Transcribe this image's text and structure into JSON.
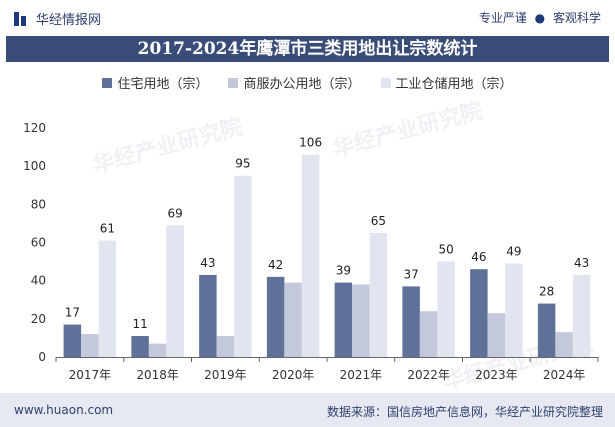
{
  "header": {
    "brand": "华经情报网",
    "slogan_left": "专业严谨",
    "slogan_right": "客观科学"
  },
  "title": "2017-2024年鹰潭市三类用地出让宗数统计",
  "watermark": {
    "cn": "华经产业研究院",
    "url": "www.huaon.com"
  },
  "footer": {
    "url": "www.huaon.com",
    "source": "数据来源：国信房地产信息网，华经产业研究院整理"
  },
  "colors": {
    "residential": "#5f7199",
    "commercial": "#c3c9da",
    "industrial": "#e1e5f0",
    "title_bg": "#3a4d78"
  },
  "chart_data": {
    "type": "bar",
    "categories": [
      "2017年",
      "2018年",
      "2019年",
      "2020年",
      "2021年",
      "2022年",
      "2023年",
      "2024年"
    ],
    "series": [
      {
        "name": "住宅用地（宗）",
        "values": [
          17,
          11,
          43,
          42,
          39,
          37,
          46,
          28
        ],
        "labeled": true
      },
      {
        "name": "商服办公用地（宗）",
        "values": [
          12,
          7,
          11,
          39,
          38,
          24,
          23,
          13
        ],
        "labeled": false
      },
      {
        "name": "工业仓储用地（宗）",
        "values": [
          61,
          69,
          95,
          106,
          65,
          50,
          49,
          43
        ],
        "labeled": true
      }
    ],
    "ylim": [
      0,
      120
    ],
    "yticks": [
      0,
      20,
      40,
      60,
      80,
      100,
      120
    ],
    "legend": "top-center",
    "grid": false
  }
}
